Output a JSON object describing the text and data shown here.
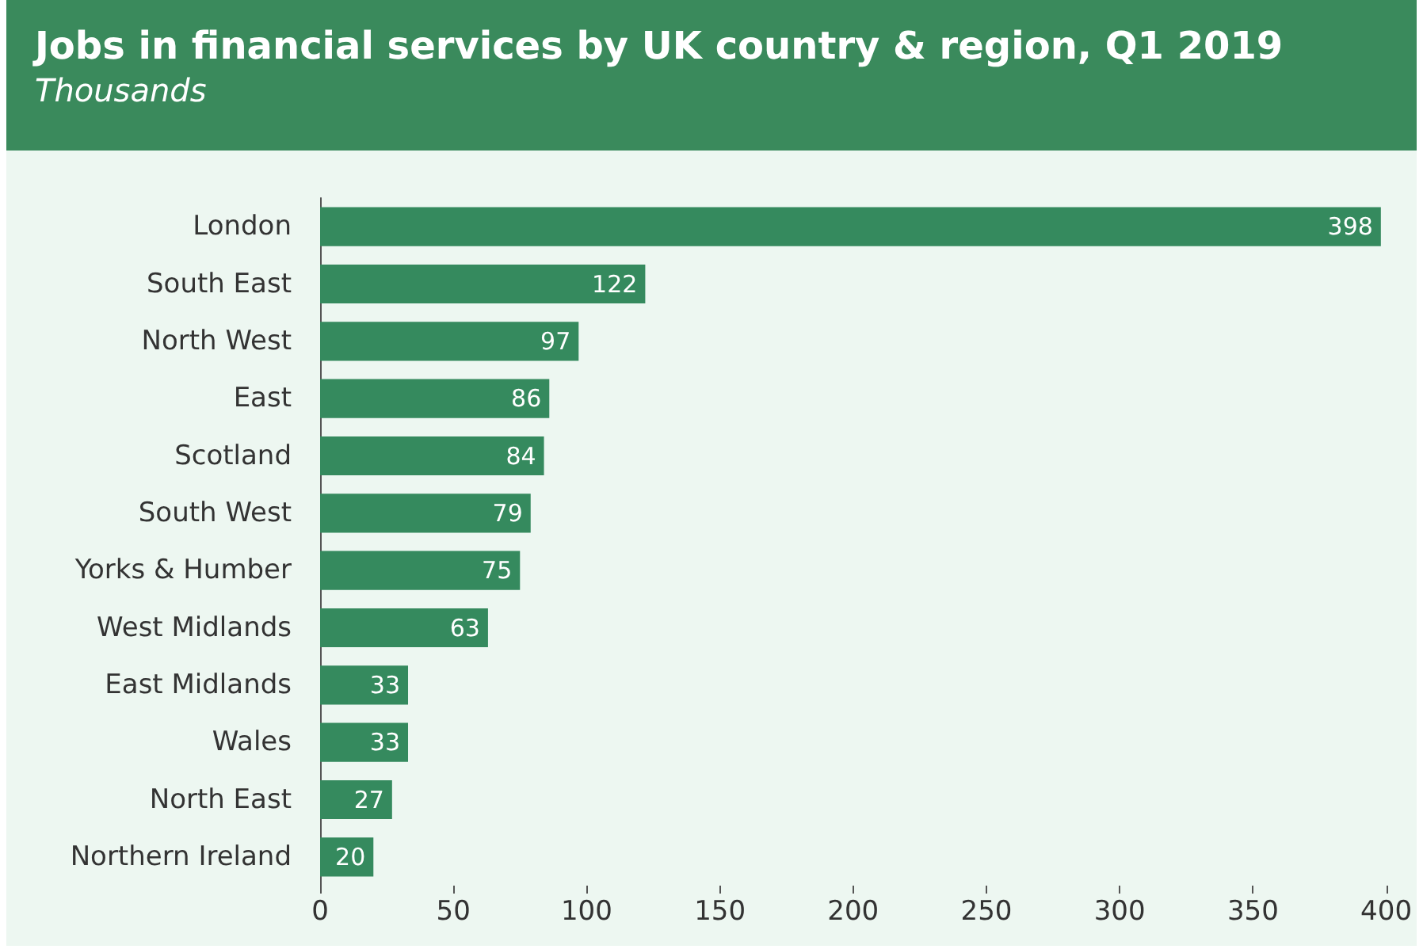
{
  "chart_data": {
    "type": "bar",
    "orientation": "horizontal",
    "title": "Jobs in financial services by UK country & region, Q1 2019",
    "subtitle": "Thousands",
    "categories": [
      "London",
      "South East",
      "North West",
      "East",
      "Scotland",
      "South West",
      "Yorks & Humber",
      "West Midlands",
      "East Midlands",
      "Wales",
      "North East",
      "Northern Ireland"
    ],
    "values": [
      398,
      122,
      97,
      86,
      84,
      79,
      75,
      63,
      33,
      33,
      27,
      20
    ],
    "color": "#358a5e",
    "xlim": [
      0,
      400
    ],
    "xticks": [
      0,
      50,
      100,
      150,
      200,
      250,
      300,
      350,
      400
    ],
    "grid": false,
    "data_labels": true
  }
}
